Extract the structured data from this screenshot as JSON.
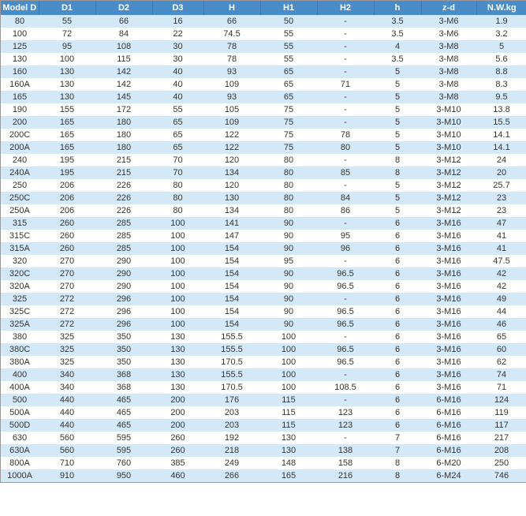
{
  "table": {
    "header_bg": "#4a8cc7",
    "header_color": "#ffffff",
    "row_even_bg": "#d4e9f7",
    "row_odd_bg": "#ffffff",
    "font_size": 11,
    "columns": [
      {
        "key": "model",
        "label": "Model D",
        "width": 48
      },
      {
        "key": "d1",
        "label": "D1",
        "width": 72
      },
      {
        "key": "d2",
        "label": "D2",
        "width": 72
      },
      {
        "key": "d3",
        "label": "D3",
        "width": 65
      },
      {
        "key": "H",
        "label": "H",
        "width": 72
      },
      {
        "key": "h1",
        "label": "H1",
        "width": 72
      },
      {
        "key": "h2",
        "label": "H2",
        "width": 72
      },
      {
        "key": "hh",
        "label": "h",
        "width": 60
      },
      {
        "key": "zd",
        "label": "z-d",
        "width": 70
      },
      {
        "key": "nw",
        "label": "N.W.kg",
        "width": 64
      }
    ],
    "rows": [
      [
        "80",
        "55",
        "66",
        "16",
        "66",
        "50",
        "-",
        "3.5",
        "3-M6",
        "1.9"
      ],
      [
        "100",
        "72",
        "84",
        "22",
        "74.5",
        "55",
        "-",
        "3.5",
        "3-M6",
        "3.2"
      ],
      [
        "125",
        "95",
        "108",
        "30",
        "78",
        "55",
        "-",
        "4",
        "3-M8",
        "5"
      ],
      [
        "130",
        "100",
        "115",
        "30",
        "78",
        "55",
        "-",
        "3.5",
        "3-M8",
        "5.6"
      ],
      [
        "160",
        "130",
        "142",
        "40",
        "93",
        "65",
        "-",
        "5",
        "3-M8",
        "8.8"
      ],
      [
        "160A",
        "130",
        "142",
        "40",
        "109",
        "65",
        "71",
        "5",
        "3-M8",
        "8.3"
      ],
      [
        "165",
        "130",
        "145",
        "40",
        "93",
        "65",
        "-",
        "5",
        "3-M8",
        "9.5"
      ],
      [
        "190",
        "155",
        "172",
        "55",
        "105",
        "75",
        "-",
        "5",
        "3-M10",
        "13.8"
      ],
      [
        "200",
        "165",
        "180",
        "65",
        "109",
        "75",
        "-",
        "5",
        "3-M10",
        "15.5"
      ],
      [
        "200C",
        "165",
        "180",
        "65",
        "122",
        "75",
        "78",
        "5",
        "3-M10",
        "14.1"
      ],
      [
        "200A",
        "165",
        "180",
        "65",
        "122",
        "75",
        "80",
        "5",
        "3-M10",
        "14.1"
      ],
      [
        "240",
        "195",
        "215",
        "70",
        "120",
        "80",
        "-",
        "8",
        "3-M12",
        "24"
      ],
      [
        "240A",
        "195",
        "215",
        "70",
        "134",
        "80",
        "85",
        "8",
        "3-M12",
        "20"
      ],
      [
        "250",
        "206",
        "226",
        "80",
        "120",
        "80",
        "-",
        "5",
        "3-M12",
        "25.7"
      ],
      [
        "250C",
        "206",
        "226",
        "80",
        "130",
        "80",
        "84",
        "5",
        "3-M12",
        "23"
      ],
      [
        "250A",
        "206",
        "226",
        "80",
        "134",
        "80",
        "86",
        "5",
        "3-M12",
        "23"
      ],
      [
        "315",
        "260",
        "285",
        "100",
        "141",
        "90",
        "-",
        "6",
        "3-M16",
        "47"
      ],
      [
        "315C",
        "260",
        "285",
        "100",
        "147",
        "90",
        "95",
        "6",
        "3-M16",
        "41"
      ],
      [
        "315A",
        "260",
        "285",
        "100",
        "154",
        "90",
        "96",
        "6",
        "3-M16",
        "41"
      ],
      [
        "320",
        "270",
        "290",
        "100",
        "154",
        "95",
        "-",
        "6",
        "3-M16",
        "47.5"
      ],
      [
        "320C",
        "270",
        "290",
        "100",
        "154",
        "90",
        "96.5",
        "6",
        "3-M16",
        "42"
      ],
      [
        "320A",
        "270",
        "290",
        "100",
        "154",
        "90",
        "96.5",
        "6",
        "3-M16",
        "42"
      ],
      [
        "325",
        "272",
        "296",
        "100",
        "154",
        "90",
        "-",
        "6",
        "3-M16",
        "49"
      ],
      [
        "325C",
        "272",
        "296",
        "100",
        "154",
        "90",
        "96.5",
        "6",
        "3-M16",
        "44"
      ],
      [
        "325A",
        "272",
        "296",
        "100",
        "154",
        "90",
        "96.5",
        "6",
        "3-M16",
        "46"
      ],
      [
        "380",
        "325",
        "350",
        "130",
        "155.5",
        "100",
        "-",
        "6",
        "3-M16",
        "65"
      ],
      [
        "380C",
        "325",
        "350",
        "130",
        "155.5",
        "100",
        "96.5",
        "6",
        "3-M16",
        "60"
      ],
      [
        "380A",
        "325",
        "350",
        "130",
        "170.5",
        "100",
        "96.5",
        "6",
        "3-M16",
        "62"
      ],
      [
        "400",
        "340",
        "368",
        "130",
        "155.5",
        "100",
        "-",
        "6",
        "3-M16",
        "74"
      ],
      [
        "400A",
        "340",
        "368",
        "130",
        "170.5",
        "100",
        "108.5",
        "6",
        "3-M16",
        "71"
      ],
      [
        "500",
        "440",
        "465",
        "200",
        "176",
        "115",
        "-",
        "6",
        "6-M16",
        "124"
      ],
      [
        "500A",
        "440",
        "465",
        "200",
        "203",
        "115",
        "123",
        "6",
        "6-M16",
        "119"
      ],
      [
        "500D",
        "440",
        "465",
        "200",
        "203",
        "115",
        "123",
        "6",
        "6-M16",
        "117"
      ],
      [
        "630",
        "560",
        "595",
        "260",
        "192",
        "130",
        "-",
        "7",
        "6-M16",
        "217"
      ],
      [
        "630A",
        "560",
        "595",
        "260",
        "218",
        "130",
        "138",
        "7",
        "6-M16",
        "208"
      ],
      [
        "800A",
        "710",
        "760",
        "385",
        "249",
        "148",
        "158",
        "8",
        "6-M20",
        "250"
      ],
      [
        "1000A",
        "910",
        "950",
        "460",
        "266",
        "165",
        "216",
        "8",
        "6-M24",
        "746"
      ]
    ]
  }
}
